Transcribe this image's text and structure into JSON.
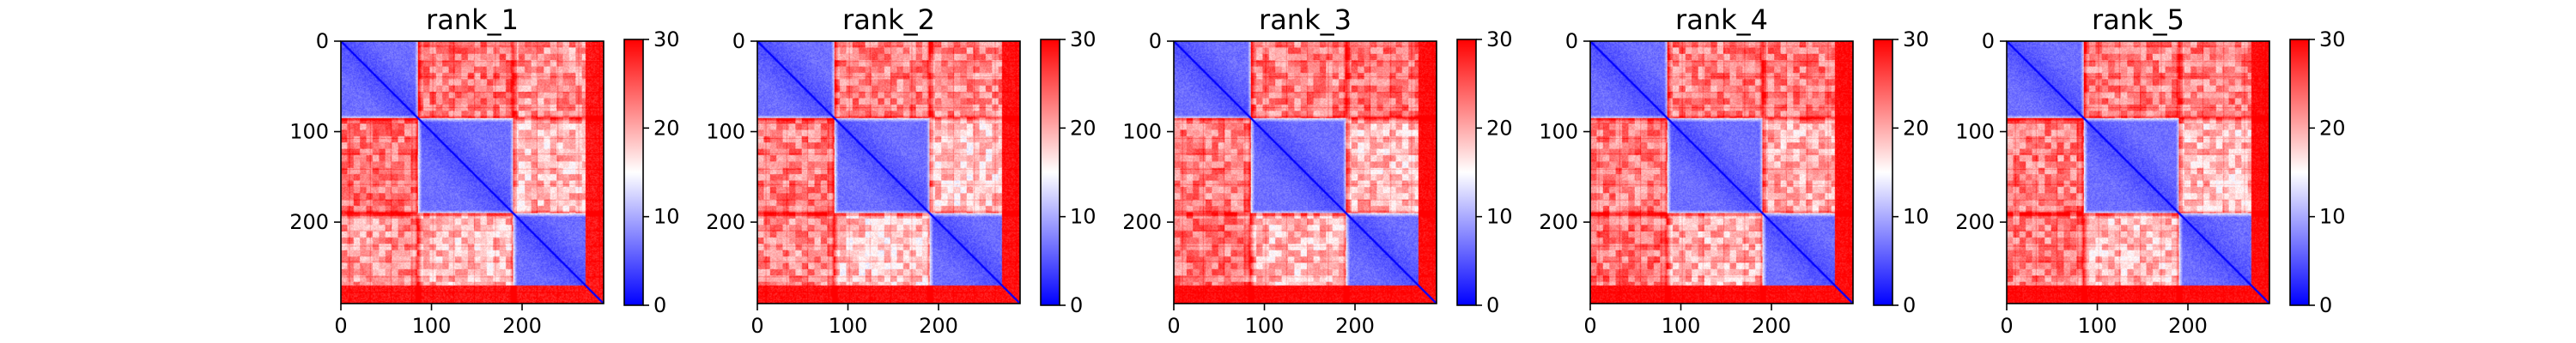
{
  "chart_data": [
    {
      "type": "heatmap",
      "title": "rank_1",
      "xlabel": "",
      "ylabel": "",
      "n": 290,
      "xlim": [
        0,
        290
      ],
      "ylim": [
        290,
        0
      ],
      "x_ticks": [
        0,
        100,
        200
      ],
      "y_ticks": [
        0,
        100,
        200
      ],
      "clim": [
        0,
        30
      ],
      "colorbar_ticks": [
        0,
        10,
        20,
        30
      ],
      "colormap": "bwr",
      "domain_boundaries": [
        85,
        190,
        270
      ],
      "band_strength": [
        0.95,
        0.8,
        0.6,
        0.85
      ]
    },
    {
      "type": "heatmap",
      "title": "rank_2",
      "xlabel": "",
      "ylabel": "",
      "n": 290,
      "xlim": [
        0,
        290
      ],
      "ylim": [
        290,
        0
      ],
      "x_ticks": [
        0,
        100,
        200
      ],
      "y_ticks": [
        0,
        100,
        200
      ],
      "clim": [
        0,
        30
      ],
      "colorbar_ticks": [
        0,
        10,
        20,
        30
      ],
      "colormap": "bwr",
      "domain_boundaries": [
        85,
        190,
        270
      ],
      "band_strength": [
        0.9,
        0.85,
        0.55,
        0.9
      ]
    },
    {
      "type": "heatmap",
      "title": "rank_3",
      "xlabel": "",
      "ylabel": "",
      "n": 290,
      "xlim": [
        0,
        290
      ],
      "ylim": [
        290,
        0
      ],
      "x_ticks": [
        0,
        100,
        200
      ],
      "y_ticks": [
        0,
        100,
        200
      ],
      "clim": [
        0,
        30
      ],
      "colorbar_ticks": [
        0,
        10,
        20,
        30
      ],
      "colormap": "bwr",
      "domain_boundaries": [
        85,
        190,
        270
      ],
      "band_strength": [
        0.9,
        0.95,
        0.6,
        0.95
      ]
    },
    {
      "type": "heatmap",
      "title": "rank_4",
      "xlabel": "",
      "ylabel": "",
      "n": 290,
      "xlim": [
        0,
        290
      ],
      "ylim": [
        290,
        0
      ],
      "x_ticks": [
        0,
        100,
        200
      ],
      "y_ticks": [
        0,
        100,
        200
      ],
      "clim": [
        0,
        30
      ],
      "colorbar_ticks": [
        0,
        10,
        20,
        30
      ],
      "colormap": "bwr",
      "domain_boundaries": [
        85,
        190,
        270
      ],
      "band_strength": [
        0.9,
        0.95,
        0.65,
        0.95
      ]
    },
    {
      "type": "heatmap",
      "title": "rank_5",
      "xlabel": "",
      "ylabel": "",
      "n": 290,
      "xlim": [
        0,
        290
      ],
      "ylim": [
        290,
        0
      ],
      "x_ticks": [
        0,
        100,
        200
      ],
      "y_ticks": [
        0,
        100,
        200
      ],
      "clim": [
        0,
        30
      ],
      "colorbar_ticks": [
        0,
        10,
        20,
        30
      ],
      "colormap": "bwr",
      "domain_boundaries": [
        85,
        190,
        270
      ],
      "band_strength": [
        0.9,
        0.9,
        0.6,
        0.95
      ]
    }
  ]
}
